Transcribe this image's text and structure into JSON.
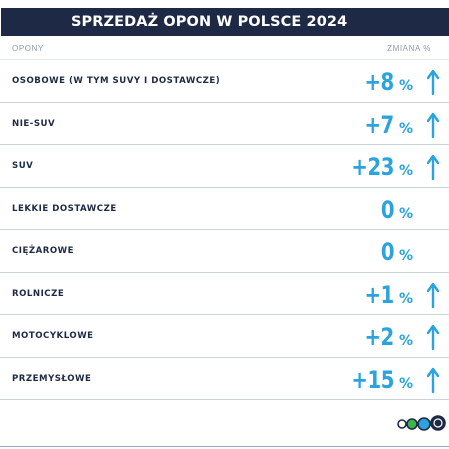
{
  "header": {
    "title": "SPRZEDAŻ OPON W POLSCE 2024"
  },
  "columns": {
    "left": "OPONY",
    "right": "ZMIANA %"
  },
  "colors": {
    "header_bg": "#1e2a45",
    "accent": "#2aa3df",
    "label": "#1e2a45"
  },
  "chart_data": {
    "type": "table",
    "title": "SPRZEDAŻ OPON W POLSCE 2024",
    "columns": [
      "OPONY",
      "ZMIANA %"
    ],
    "rows": [
      {
        "label": "OSOBOWE (W TYM SUVY I DOSTAWCZE)",
        "display": "+8",
        "unit": "%",
        "change": 8,
        "arrow": "up"
      },
      {
        "label": "NIE-SUV",
        "display": "+7",
        "unit": "%",
        "change": 7,
        "arrow": "up"
      },
      {
        "label": "SUV",
        "display": "+23",
        "unit": "%",
        "change": 23,
        "arrow": "up"
      },
      {
        "label": "LEKKIE DOSTAWCZE",
        "display": "0",
        "unit": "%",
        "change": 0,
        "arrow": "none"
      },
      {
        "label": "CIĘŻAROWE",
        "display": "0",
        "unit": "%",
        "change": 0,
        "arrow": "none"
      },
      {
        "label": "ROLNICZE",
        "display": "+1",
        "unit": "%",
        "change": 1,
        "arrow": "up"
      },
      {
        "label": "MOTOCYKLOWE",
        "display": "+2",
        "unit": "%",
        "change": 2,
        "arrow": "up"
      },
      {
        "label": "PRZEMYSŁOWE",
        "display": "+15",
        "unit": "%",
        "change": 15,
        "arrow": "up"
      }
    ]
  },
  "logo": {
    "icon": "four-circles-logo"
  }
}
